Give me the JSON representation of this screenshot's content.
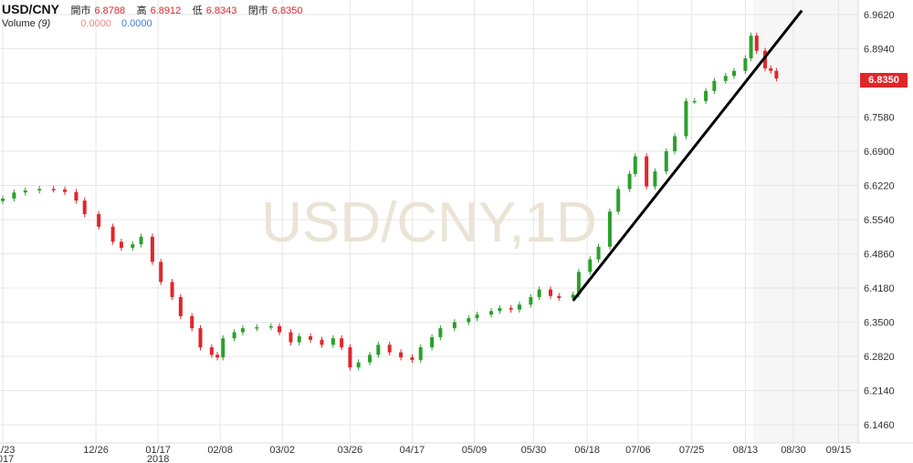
{
  "header": {
    "symbol": "USD/CNY",
    "open_label": "開市",
    "open_value": "6.8788",
    "high_label": "高",
    "high_value": "6.8912",
    "low_label": "低",
    "low_value": "6.8343",
    "close_label": "閉市",
    "close_value": "6.8350",
    "volume_label": "Volume",
    "volume_period": "(9)",
    "volume_value_1": "0.0000",
    "volume_value_2": "0.0000"
  },
  "watermark": "USD/CNY,1D",
  "last_price_label": "6.8350",
  "colors": {
    "up": "#2ca02c",
    "down": "#e0262b",
    "trendline": "#000000",
    "grid": "#e6e6e6"
  },
  "chart_data": {
    "type": "candlestick",
    "ylim": [
      6.1,
      7.0
    ],
    "yticks": [
      "6.9620",
      "6.8940",
      "6.8260",
      "6.7580",
      "6.6900",
      "6.6220",
      "6.5540",
      "6.4860",
      "6.4180",
      "6.3500",
      "6.2820",
      "6.2140",
      "6.1460"
    ],
    "y_tick_values": [
      6.962,
      6.894,
      6.826,
      6.758,
      6.69,
      6.622,
      6.554,
      6.486,
      6.418,
      6.35,
      6.282,
      6.214,
      6.146
    ],
    "xticks": [
      "11/23\n2017",
      "12/26",
      "01/17\n2018",
      "02/08",
      "03/02",
      "03/26",
      "04/17",
      "05/09",
      "05/30",
      "06/18",
      "07/06",
      "07/25",
      "08/13",
      "08/30",
      "09/15"
    ],
    "x_tick_dates": [
      "2017-11-23",
      "2017-12-26",
      "2018-01-17",
      "2018-02-08",
      "2018-03-02",
      "2018-03-26",
      "2018-04-17",
      "2018-05-09",
      "2018-05-30",
      "2018-06-18",
      "2018-07-06",
      "2018-07-25",
      "2018-08-13",
      "2018-08-30",
      "2018-09-15"
    ],
    "x_range": [
      "2017-11-23",
      "2018-09-21"
    ],
    "trendline": {
      "start": [
        "2018-06-13",
        6.393
      ],
      "end": [
        "2018-09-02",
        6.97
      ]
    },
    "closes": [
      [
        "2017-11-23",
        6.596
      ],
      [
        "2017-11-27",
        6.608
      ],
      [
        "2017-12-01",
        6.612
      ],
      [
        "2017-12-06",
        6.615
      ],
      [
        "2017-12-11",
        6.614
      ],
      [
        "2017-12-15",
        6.609
      ],
      [
        "2017-12-19",
        6.592
      ],
      [
        "2017-12-22",
        6.565
      ],
      [
        "2017-12-27",
        6.54
      ],
      [
        "2018-01-01",
        6.51
      ],
      [
        "2018-01-04",
        6.498
      ],
      [
        "2018-01-08",
        6.505
      ],
      [
        "2018-01-11",
        6.52
      ],
      [
        "2018-01-15",
        6.47
      ],
      [
        "2018-01-18",
        6.43
      ],
      [
        "2018-01-22",
        6.4
      ],
      [
        "2018-01-25",
        6.362
      ],
      [
        "2018-01-29",
        6.338
      ],
      [
        "2018-02-01",
        6.3
      ],
      [
        "2018-02-05",
        6.285
      ],
      [
        "2018-02-07",
        6.28
      ],
      [
        "2018-02-09",
        6.318
      ],
      [
        "2018-02-13",
        6.33
      ],
      [
        "2018-02-16",
        6.338
      ],
      [
        "2018-02-21",
        6.34
      ],
      [
        "2018-02-26",
        6.342
      ],
      [
        "2018-03-01",
        6.33
      ],
      [
        "2018-03-05",
        6.31
      ],
      [
        "2018-03-08",
        6.322
      ],
      [
        "2018-03-12",
        6.315
      ],
      [
        "2018-03-16",
        6.305
      ],
      [
        "2018-03-20",
        6.318
      ],
      [
        "2018-03-23",
        6.3
      ],
      [
        "2018-03-26",
        6.26
      ],
      [
        "2018-03-29",
        6.27
      ],
      [
        "2018-04-02",
        6.285
      ],
      [
        "2018-04-05",
        6.305
      ],
      [
        "2018-04-09",
        6.29
      ],
      [
        "2018-04-13",
        6.28
      ],
      [
        "2018-04-17",
        6.275
      ],
      [
        "2018-04-20",
        6.3
      ],
      [
        "2018-04-24",
        6.32
      ],
      [
        "2018-04-27",
        6.338
      ],
      [
        "2018-05-02",
        6.35
      ],
      [
        "2018-05-07",
        6.358
      ],
      [
        "2018-05-10",
        6.365
      ],
      [
        "2018-05-15",
        6.372
      ],
      [
        "2018-05-18",
        6.378
      ],
      [
        "2018-05-22",
        6.375
      ],
      [
        "2018-05-25",
        6.385
      ],
      [
        "2018-05-29",
        6.4
      ],
      [
        "2018-06-01",
        6.415
      ],
      [
        "2018-06-05",
        6.402
      ],
      [
        "2018-06-08",
        6.398
      ],
      [
        "2018-06-13",
        6.405
      ],
      [
        "2018-06-15",
        6.45
      ],
      [
        "2018-06-19",
        6.475
      ],
      [
        "2018-06-22",
        6.5
      ],
      [
        "2018-06-26",
        6.57
      ],
      [
        "2018-06-29",
        6.615
      ],
      [
        "2018-07-03",
        6.645
      ],
      [
        "2018-07-05",
        6.68
      ],
      [
        "2018-07-09",
        6.62
      ],
      [
        "2018-07-12",
        6.65
      ],
      [
        "2018-07-16",
        6.69
      ],
      [
        "2018-07-19",
        6.72
      ],
      [
        "2018-07-23",
        6.79
      ],
      [
        "2018-07-26",
        6.79
      ],
      [
        "2018-07-30",
        6.81
      ],
      [
        "2018-08-02",
        6.83
      ],
      [
        "2018-08-06",
        6.84
      ],
      [
        "2018-08-09",
        6.85
      ],
      [
        "2018-08-13",
        6.875
      ],
      [
        "2018-08-15",
        6.92
      ],
      [
        "2018-08-17",
        6.89
      ],
      [
        "2018-08-20",
        6.855
      ],
      [
        "2018-08-22",
        6.85
      ],
      [
        "2018-08-24",
        6.835
      ]
    ]
  }
}
